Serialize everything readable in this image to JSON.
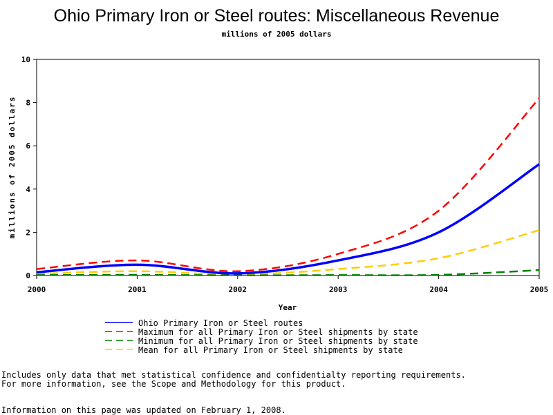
{
  "chart_data": {
    "type": "line",
    "title": "Ohio Primary Iron or Steel routes: Miscellaneous Revenue",
    "subtitle": "millions of 2005 dollars",
    "xlabel": "Year",
    "ylabel": "millions of 2005 dollars",
    "x": [
      2000,
      2001,
      2002,
      2003,
      2004,
      2005
    ],
    "xlim": [
      2000,
      2005
    ],
    "ylim": [
      0,
      10
    ],
    "yticks": [
      0,
      2,
      4,
      6,
      8,
      10
    ],
    "grid": false,
    "legend_position": "bottom",
    "series": [
      {
        "name": "Ohio Primary Iron or Steel routes",
        "values": [
          0.15,
          0.5,
          0.1,
          0.7,
          2.0,
          5.15
        ],
        "color": "#0000ff",
        "style": "solid"
      },
      {
        "name": "Maximum for all Primary Iron or Steel shipments by state",
        "values": [
          0.3,
          0.7,
          0.2,
          1.0,
          3.0,
          8.2
        ],
        "color": "#ff0000",
        "style": "dashed"
      },
      {
        "name": "Minimum for all Primary Iron or Steel shipments by state",
        "values": [
          0.02,
          0.03,
          0.01,
          0.02,
          0.03,
          0.25
        ],
        "color": "#008000",
        "style": "dashed"
      },
      {
        "name": "Mean for all Primary Iron or Steel shipments by state",
        "values": [
          0.08,
          0.2,
          0.05,
          0.3,
          0.8,
          2.1
        ],
        "color": "#ffcc00",
        "style": "dashed"
      }
    ]
  },
  "notes": {
    "line1": "Includes only data that met statistical confidence and confidentialty reporting requirements.",
    "line2": "For more information, see the Scope and Methodology for this product.",
    "updated": "Information on this page was updated on February 1, 2008."
  }
}
